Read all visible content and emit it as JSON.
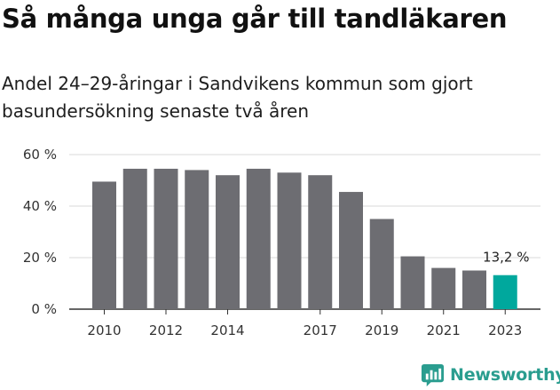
{
  "title": "Så många unga går till tandläkaren",
  "subtitle": "Andel 24–29-åringar i Sandvikens kommun som gjort basundersökning senaste två åren",
  "brand": "Newsworthy",
  "colors": {
    "bar": "#6d6d72",
    "highlight": "#00a89d",
    "grid": "#d9d9d9",
    "brand": "#2a9d8f"
  },
  "chart_data": {
    "type": "bar",
    "categories": [
      "2010",
      "2011",
      "2012",
      "2013",
      "2014",
      "2015",
      "2016",
      "2017",
      "2018",
      "2019",
      "2020",
      "2021",
      "2022",
      "2023"
    ],
    "values": [
      49.5,
      54.5,
      54.5,
      54,
      52,
      54.5,
      53,
      52,
      45.5,
      35,
      20.5,
      16,
      15,
      13.2
    ],
    "x_tick_labels": [
      "2010",
      "2012",
      "2014",
      "2017",
      "2019",
      "2021",
      "2023"
    ],
    "y_ticks": [
      0,
      20,
      40,
      60
    ],
    "y_tick_labels": [
      "0 %",
      "20 %",
      "40 %",
      "60 %"
    ],
    "ylim": [
      0,
      60
    ],
    "highlight_index": 13,
    "annotation": "13,2 %",
    "grid": true
  }
}
